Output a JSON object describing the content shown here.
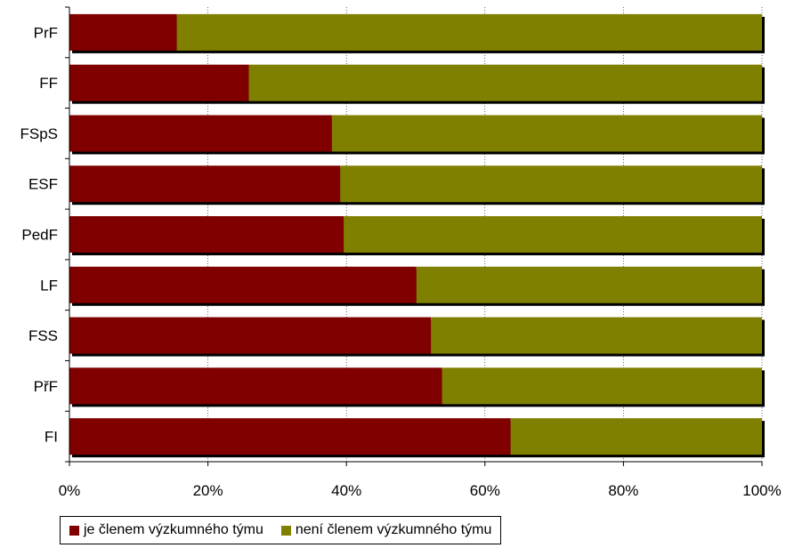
{
  "chart_data": {
    "type": "bar",
    "orientation": "horizontal",
    "stacked": "percent",
    "categories": [
      "PrF",
      "FF",
      "FSpS",
      "ESF",
      "PedF",
      "LF",
      "FSS",
      "PřF",
      "FI"
    ],
    "series": [
      {
        "name": "je členem výzkumného týmu",
        "color": "#800000",
        "values": [
          15.5,
          25.9,
          37.9,
          39.1,
          39.6,
          50.1,
          52.2,
          53.8,
          63.7
        ]
      },
      {
        "name": "není členem výzkumného týmu",
        "color": "#808000",
        "values": [
          84.5,
          74.1,
          62.1,
          60.9,
          60.4,
          49.9,
          47.8,
          46.2,
          36.3
        ]
      }
    ],
    "xlim": [
      0,
      100
    ],
    "x_ticks": [
      "0%",
      "20%",
      "40%",
      "60%",
      "80%",
      "100%"
    ],
    "grid": "vertical",
    "legend_position": "bottom-left"
  }
}
